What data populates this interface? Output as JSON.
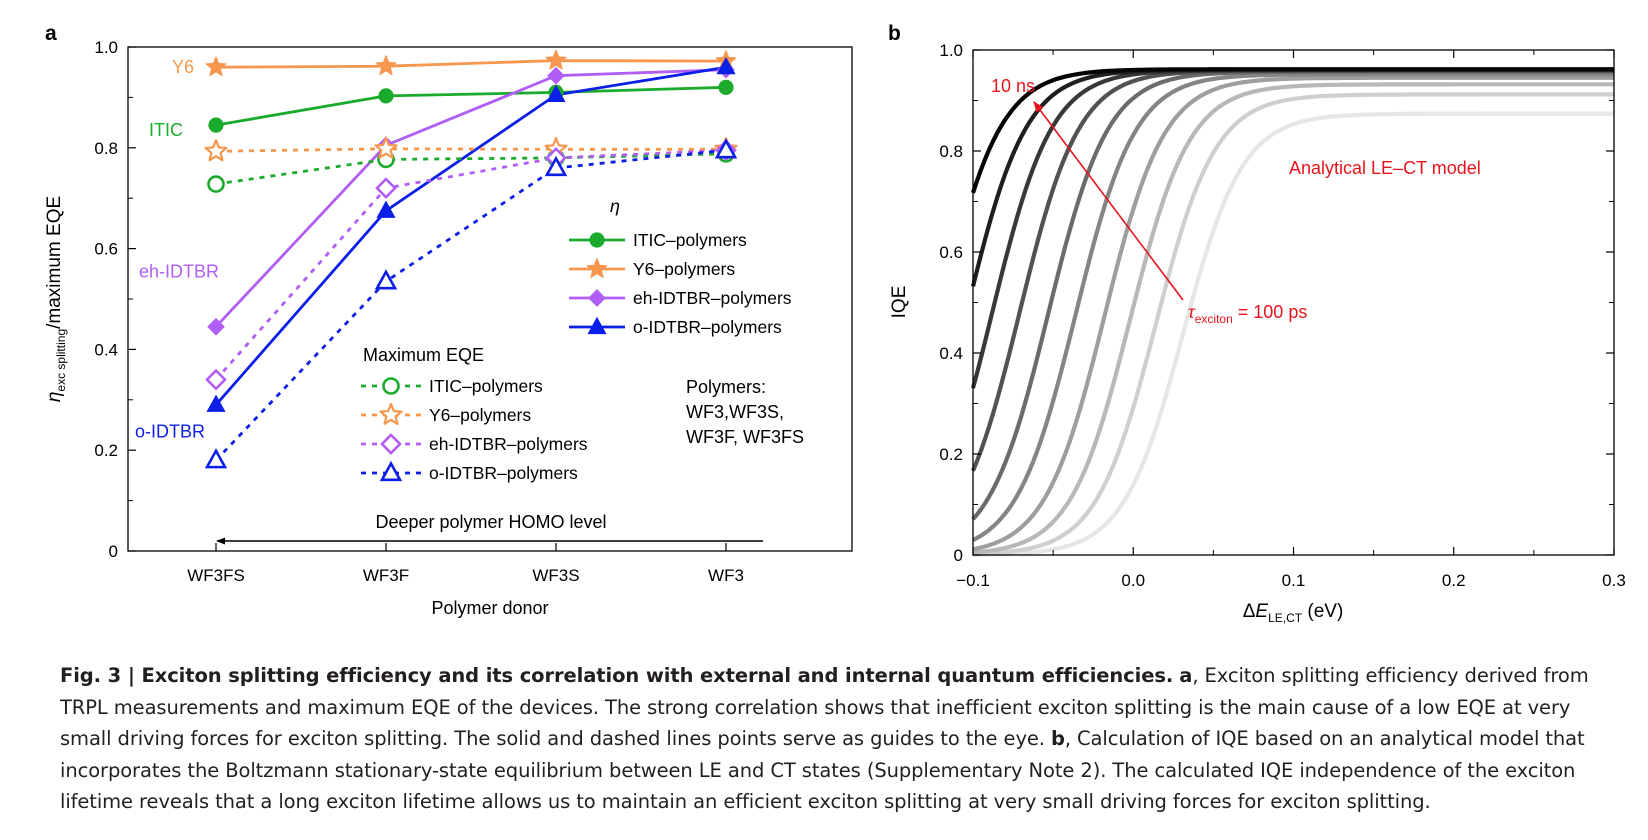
{
  "chart_data": [
    {
      "type": "line",
      "panel_label": "a",
      "ylabel_main": "η",
      "ylabel_sub": "exc splitting",
      "ylabel_tail": "/maximum EQE",
      "xlabel": "Polymer donor",
      "categories": [
        "WF3FS",
        "WF3F",
        "WF3S",
        "WF3"
      ],
      "ylim": [
        0,
        1.0
      ],
      "yticks": [
        "0",
        "0.2",
        "0.4",
        "0.6",
        "0.8",
        "1.0"
      ],
      "series": [
        {
          "name": "ITIC–polymers",
          "group": "eta",
          "color": "#1aab2c",
          "marker": "circle",
          "filled": true,
          "dashed": false,
          "values": [
            0.845,
            0.903,
            0.91,
            0.92
          ]
        },
        {
          "name": "Y6–polymers",
          "group": "eta",
          "color": "#f7974d",
          "marker": "star",
          "filled": true,
          "dashed": false,
          "values": [
            0.96,
            0.962,
            0.973,
            0.972
          ]
        },
        {
          "name": "eh-IDTBR–polymers",
          "group": "eta",
          "color": "#b05ef5",
          "marker": "diamond",
          "filled": true,
          "dashed": false,
          "values": [
            0.445,
            0.805,
            0.943,
            0.955
          ]
        },
        {
          "name": "o-IDTBR–polymers",
          "group": "eta",
          "color": "#0c1fe6",
          "marker": "triangle",
          "filled": true,
          "dashed": false,
          "values": [
            0.29,
            0.675,
            0.905,
            0.96
          ]
        },
        {
          "name": "ITIC–polymers",
          "group": "eqe",
          "color": "#1aab2c",
          "marker": "circle",
          "filled": false,
          "dashed": true,
          "values": [
            0.728,
            0.777,
            0.78,
            0.788
          ]
        },
        {
          "name": "Y6–polymers",
          "group": "eqe",
          "color": "#f7974d",
          "marker": "star",
          "filled": false,
          "dashed": true,
          "values": [
            0.793,
            0.798,
            0.797,
            0.797
          ]
        },
        {
          "name": "eh-IDTBR–polymers",
          "group": "eqe",
          "color": "#b05ef5",
          "marker": "diamond",
          "filled": false,
          "dashed": true,
          "values": [
            0.34,
            0.72,
            0.78,
            0.795
          ]
        },
        {
          "name": "o-IDTBR–polymers",
          "group": "eqe",
          "color": "#0c1fe6",
          "marker": "triangle",
          "filled": false,
          "dashed": true,
          "values": [
            0.18,
            0.535,
            0.76,
            0.795
          ]
        }
      ],
      "legend_eta_title": "η",
      "legend_eqe_title": "Maximum EQE",
      "annotations": {
        "y6": {
          "text": "Y6",
          "color": "#f7974d",
          "y": 0.96
        },
        "itic": {
          "text": "ITIC",
          "color": "#1aab2c",
          "y": 0.835
        },
        "eh": {
          "text": "eh-IDTBR",
          "color": "#b05ef5",
          "y": 0.555
        },
        "o": {
          "text": "o-IDTBR",
          "color": "#0c1fe6",
          "y": 0.237
        }
      },
      "polymers_note": [
        "Polymers:",
        "WF3,WF3S,",
        "WF3F, WF3FS"
      ],
      "arrow_label": "Deeper polymer HOMO level"
    },
    {
      "type": "line",
      "panel_label": "b",
      "ylabel": "IQE",
      "xlabel_delta": "Δ",
      "xlabel_E": "E",
      "xlabel_sub": "LE,CT",
      "xlabel_unit": " (eV)",
      "xlim": [
        -0.1,
        0.3
      ],
      "ylim": [
        0,
        1.0
      ],
      "xticks": [
        "−0.1",
        "0.0",
        "0.1",
        "0.2",
        "0.3"
      ],
      "yticks": [
        "0",
        "0.2",
        "0.4",
        "0.6",
        "0.8",
        "1.0"
      ],
      "series_midpoints_eV": [
        -0.12,
        -0.104,
        -0.088,
        -0.071,
        -0.053,
        -0.036,
        -0.018,
        -0.002,
        0.014,
        0.031
      ],
      "series_plateaus": [
        0.962,
        0.961,
        0.96,
        0.959,
        0.957,
        0.952,
        0.945,
        0.932,
        0.912,
        0.874
      ],
      "series_gray_levels": [
        "#050505",
        "#1f1f1f",
        "#383838",
        "#525252",
        "#6b6b6b",
        "#858585",
        "#9e9e9e",
        "#b8b8b8",
        "#cfcfcf",
        "#e6e6e6"
      ],
      "curve_width_eV": 0.0186,
      "model_label": "Analytical LE–CT model",
      "label_10ns": "10 ns",
      "tau_symbol": "τ",
      "tau_sub": "exciton",
      "tau_value": " = 100 ps",
      "annotation_color": "#e8141b"
    }
  ],
  "caption": {
    "fig_label": "Fig. 3 | Exciton splitting efficiency and its correlation with external and internal quantum efficiencies.",
    "a_label": "a",
    "a_text": ", Exciton splitting efficiency derived from TRPL measurements and maximum EQE of the devices. The strong correlation shows that inefficient exciton splitting is the main cause of a low EQE at very small driving forces for exciton splitting. The solid and dashed lines points serve as guides to the eye. ",
    "b_label": "b",
    "b_text": ", Calculation of IQE based on an analytical model that incorporates the Boltzmann stationary-state equilibrium between LE and CT states (Supplementary Note 2). The calculated IQE independence of the exciton lifetime reveals that a long exciton lifetime allows us to maintain an efficient exciton splitting at very small driving forces for exciton splitting."
  }
}
